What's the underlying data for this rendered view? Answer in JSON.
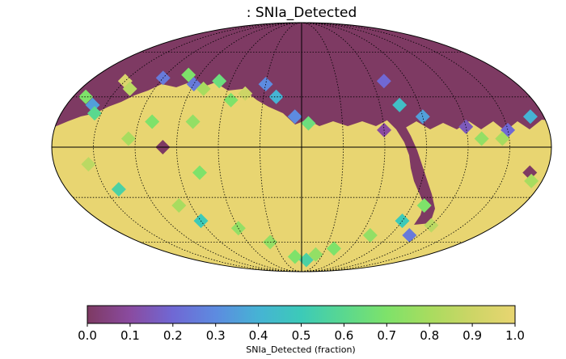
{
  "chart_data": {
    "type": "heatmap",
    "projection": "mollweide",
    "title": ": SNIa_Detected",
    "colorbar": {
      "label": "SNIa_Detected (fraction)",
      "ticks": [
        "0.0",
        "0.1",
        "0.2",
        "0.3",
        "0.4",
        "0.5",
        "0.6",
        "0.7",
        "0.8",
        "0.9",
        "1.0"
      ],
      "range": [
        0.0,
        1.0
      ],
      "colormap": [
        "#7e3a63",
        "#8a4ba0",
        "#7068d4",
        "#5d8be0",
        "#46b3d4",
        "#3ccab8",
        "#5ad88f",
        "#7ee26a",
        "#a8dc5f",
        "#cdd566",
        "#e8d571"
      ]
    },
    "background_value": 1.0,
    "graticule": {
      "shown": true,
      "meridian_step_deg": 30,
      "parallel_step_deg": 30
    },
    "regions": [
      {
        "name": "northern cap",
        "value": 0.0
      },
      {
        "name": "galactic plane band",
        "value": 0.0,
        "note": "deficit cutting across the map in an S-shape"
      },
      {
        "name": "band edge pixels",
        "value": 0.75
      }
    ],
    "pixels": [
      {
        "lon": -150,
        "lat": 40,
        "v": 0.95
      },
      {
        "lon": -170,
        "lat": 30,
        "v": 0.7
      },
      {
        "lon": -160,
        "lat": 25,
        "v": 0.35
      },
      {
        "lon": -140,
        "lat": 35,
        "v": 0.85
      },
      {
        "lon": -120,
        "lat": 42,
        "v": 0.25
      },
      {
        "lon": -100,
        "lat": 44,
        "v": 0.7
      },
      {
        "lon": -90,
        "lat": 38,
        "v": 0.25
      },
      {
        "lon": -80,
        "lat": 35,
        "v": 0.8
      },
      {
        "lon": -70,
        "lat": 40,
        "v": 0.65
      },
      {
        "lon": -55,
        "lat": 28,
        "v": 0.7
      },
      {
        "lon": -45,
        "lat": 32,
        "v": 0.9
      },
      {
        "lon": -30,
        "lat": 38,
        "v": 0.3
      },
      {
        "lon": -20,
        "lat": 30,
        "v": 0.4
      },
      {
        "lon": -5,
        "lat": 18,
        "v": 0.3
      },
      {
        "lon": 5,
        "lat": 14,
        "v": 0.65
      },
      {
        "lon": -110,
        "lat": 15,
        "v": 0.7
      },
      {
        "lon": -80,
        "lat": 15,
        "v": 0.75
      },
      {
        "lon": -100,
        "lat": 0,
        "v": 0.0
      },
      {
        "lon": -125,
        "lat": 5,
        "v": 0.8
      },
      {
        "lon": -155,
        "lat": 20,
        "v": 0.6
      },
      {
        "lon": -75,
        "lat": -15,
        "v": 0.7
      },
      {
        "lon": -155,
        "lat": -10,
        "v": 0.85
      },
      {
        "lon": -140,
        "lat": -25,
        "v": 0.55
      },
      {
        "lon": -100,
        "lat": -35,
        "v": 0.8
      },
      {
        "lon": -90,
        "lat": -45,
        "v": 0.5
      },
      {
        "lon": -60,
        "lat": -50,
        "v": 0.75
      },
      {
        "lon": -35,
        "lat": -60,
        "v": 0.75
      },
      {
        "lon": -10,
        "lat": -72,
        "v": 0.7
      },
      {
        "lon": 8,
        "lat": -75,
        "v": 0.55
      },
      {
        "lon": 20,
        "lat": -70,
        "v": 0.75
      },
      {
        "lon": 40,
        "lat": -65,
        "v": 0.7
      },
      {
        "lon": 70,
        "lat": -55,
        "v": 0.75
      },
      {
        "lon": 90,
        "lat": -45,
        "v": 0.5
      },
      {
        "lon": 100,
        "lat": -35,
        "v": 0.7
      },
      {
        "lon": 110,
        "lat": -55,
        "v": 0.25
      },
      {
        "lon": 120,
        "lat": -48,
        "v": 0.85
      },
      {
        "lon": 70,
        "lat": 40,
        "v": 0.2
      },
      {
        "lon": 75,
        "lat": 25,
        "v": 0.45
      },
      {
        "lon": 90,
        "lat": 18,
        "v": 0.35
      },
      {
        "lon": 60,
        "lat": 10,
        "v": 0.1
      },
      {
        "lon": 120,
        "lat": 12,
        "v": 0.15
      },
      {
        "lon": 150,
        "lat": 10,
        "v": 0.2
      },
      {
        "lon": 170,
        "lat": 18,
        "v": 0.4
      },
      {
        "lon": 168,
        "lat": -15,
        "v": 0.0
      },
      {
        "lon": 172,
        "lat": -20,
        "v": 0.8
      },
      {
        "lon": 145,
        "lat": 5,
        "v": 0.8
      },
      {
        "lon": 130,
        "lat": 5,
        "v": 0.75
      }
    ],
    "xlabel": "",
    "ylabel": ""
  }
}
